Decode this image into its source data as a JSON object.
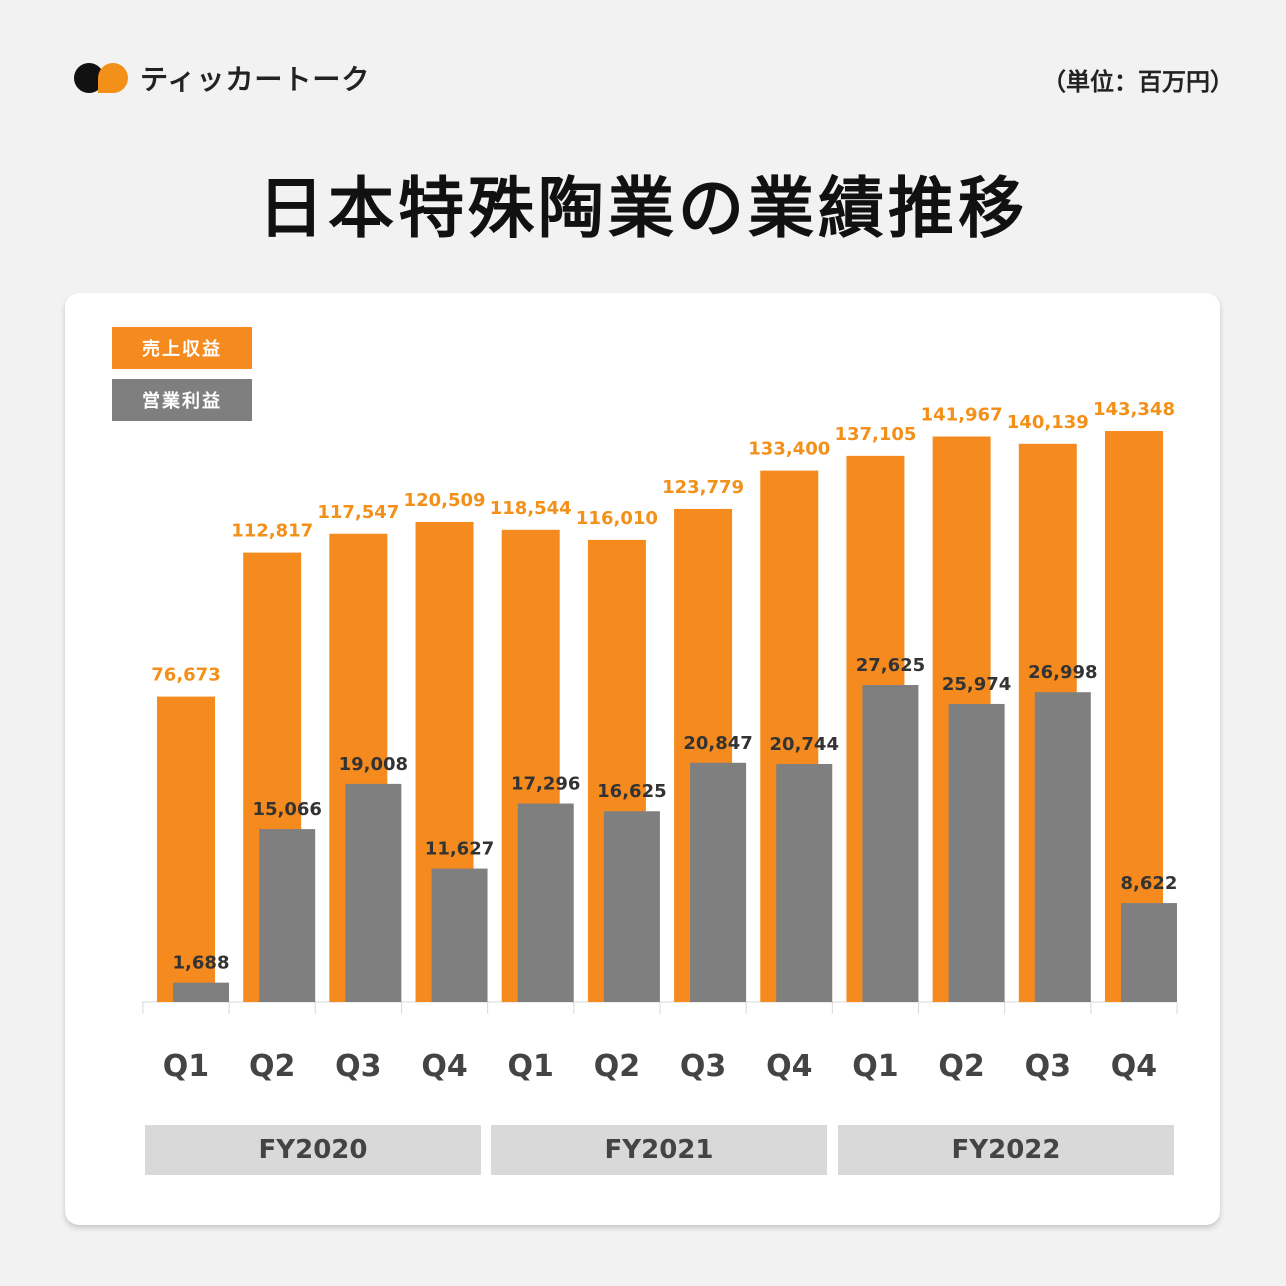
{
  "brand": {
    "name": "ティッカートーク"
  },
  "unit_label": "（単位：百万円）",
  "chart_data": {
    "type": "bar",
    "title": "日本特殊陶業の業績推移",
    "categories": [
      "Q1",
      "Q2",
      "Q3",
      "Q4",
      "Q1",
      "Q2",
      "Q3",
      "Q4",
      "Q1",
      "Q2",
      "Q3",
      "Q4"
    ],
    "groups": [
      "FY2020",
      "FY2021",
      "FY2022"
    ],
    "series": [
      {
        "name": "売上収益",
        "color": "#f58b1f",
        "values": [
          76673,
          112817,
          117547,
          120509,
          118544,
          116010,
          123779,
          133400,
          137105,
          141967,
          140139,
          143348
        ],
        "labels": [
          "76,673",
          "112,817",
          "117,547",
          "120,509",
          "118,544",
          "116,010",
          "123,779",
          "133,400",
          "137,105",
          "141,967",
          "140,139",
          "143,348"
        ]
      },
      {
        "name": "営業利益",
        "color": "#7f7f7f",
        "values": [
          1688,
          15066,
          19008,
          11627,
          17296,
          16625,
          20847,
          20744,
          27625,
          25974,
          26998,
          8622
        ],
        "labels": [
          "1,688",
          "15,066",
          "19,008",
          "11,627",
          "17,296",
          "16,625",
          "20,847",
          "20,744",
          "27,625",
          "25,974",
          "26,998",
          "8,622"
        ]
      }
    ],
    "legend": "top-left"
  }
}
